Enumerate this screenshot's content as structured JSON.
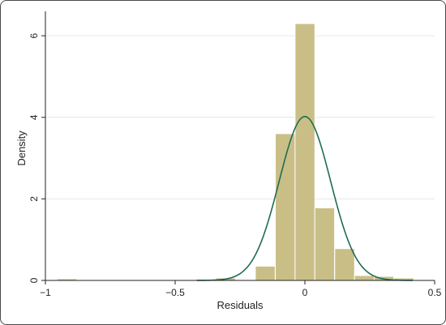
{
  "chart_data": {
    "type": "bar",
    "xlabel": "Residuals",
    "ylabel": "Density",
    "xlim": [
      -1.0,
      0.5
    ],
    "ylim": [
      0,
      6.6
    ],
    "grid": true,
    "x_ticks": [
      -1,
      -0.5,
      0,
      0.5
    ],
    "x_tick_labels": [
      "−1",
      "−0.5",
      "0",
      "0.5"
    ],
    "y_ticks": [
      0,
      2,
      4,
      6
    ],
    "y_tick_labels": [
      "0",
      "2",
      "4",
      "6"
    ],
    "bin_width": 0.0764,
    "bins": [
      {
        "start": -0.955,
        "density": 0.04
      },
      {
        "start": -0.42,
        "density": 0.03
      },
      {
        "start": -0.344,
        "density": 0.06
      },
      {
        "start": -0.191,
        "density": 0.35
      },
      {
        "start": -0.114,
        "density": 3.6
      },
      {
        "start": -0.038,
        "density": 6.3
      },
      {
        "start": 0.038,
        "density": 1.78
      },
      {
        "start": 0.115,
        "density": 0.78
      },
      {
        "start": 0.191,
        "density": 0.12
      },
      {
        "start": 0.267,
        "density": 0.1
      },
      {
        "start": 0.343,
        "density": 0.06
      }
    ],
    "density_curve": {
      "type": "normal",
      "mean": 0.0,
      "sd": 0.099,
      "peak": 4.02
    },
    "colors": {
      "bar_fill": "#c9bf86",
      "bar_stroke": "#ffffff",
      "curve": "#1f6b55",
      "grid": "#e6e6e6",
      "axis": "#222222"
    }
  }
}
